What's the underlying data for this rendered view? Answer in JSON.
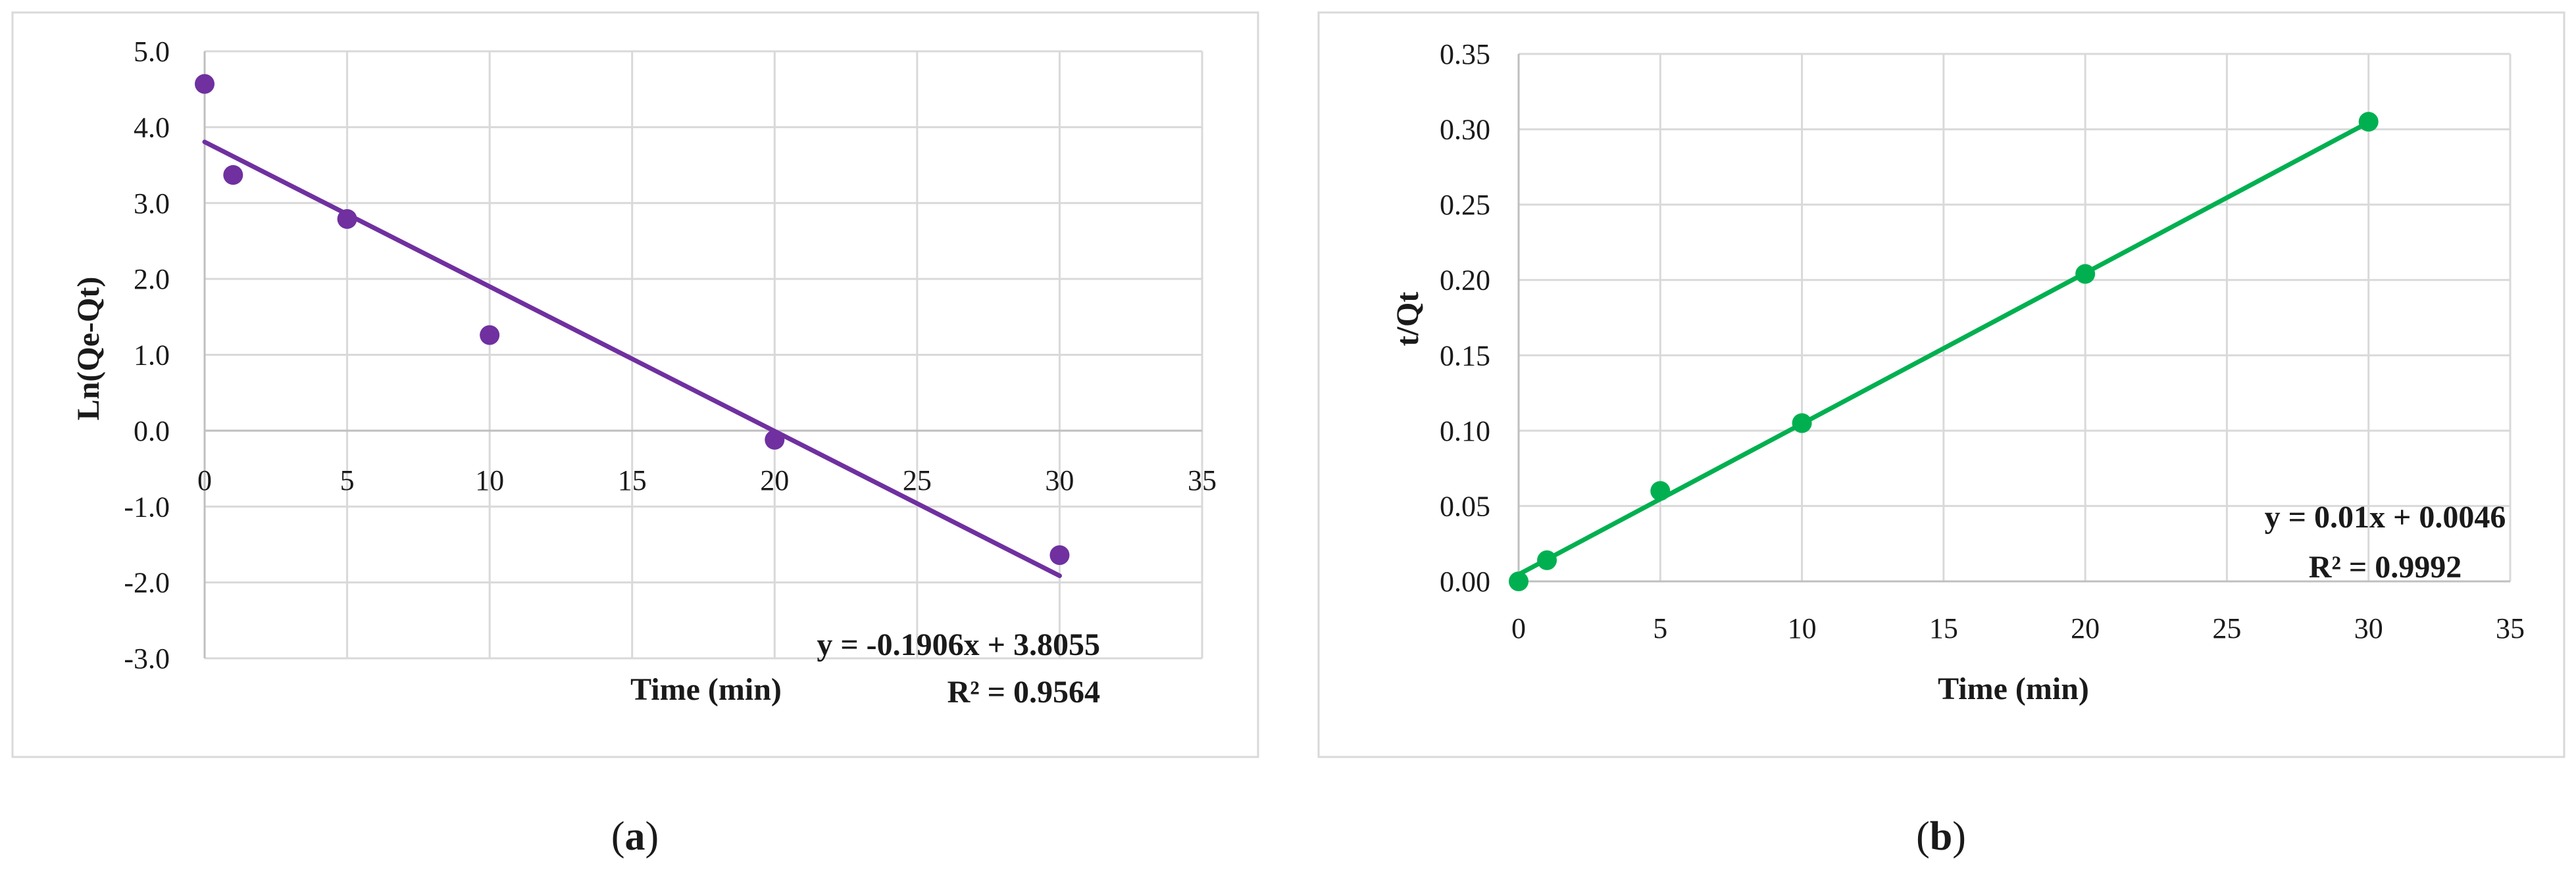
{
  "chart_data": [
    {
      "type": "scatter",
      "panel_label": "a",
      "xlabel": "Time (min)",
      "ylabel": "Ln(Qe-Qt)",
      "xlim": [
        0,
        35
      ],
      "ylim": [
        -3.0,
        5.0
      ],
      "x_ticks": [
        "0",
        "5",
        "10",
        "15",
        "20",
        "25",
        "30",
        "35"
      ],
      "y_ticks": [
        "5.0",
        "4.0",
        "3.0",
        "2.0",
        "1.0",
        "0.0",
        "-1.0",
        "-2.0",
        "-3.0"
      ],
      "grid": true,
      "color": "#7030A0",
      "series": [
        {
          "x": [
            0,
            1,
            5,
            10,
            20,
            30
          ],
          "y": [
            4.57,
            3.37,
            2.79,
            1.26,
            -0.12,
            -1.64
          ]
        }
      ],
      "trendline": {
        "slope": -0.1906,
        "intercept": 3.8055,
        "x_range": [
          0,
          30
        ],
        "equation": "y = -0.1906x + 3.8055",
        "r2": "R² = 0.9564"
      }
    },
    {
      "type": "scatter",
      "panel_label": "b",
      "xlabel": "Time (min)",
      "ylabel": "t/Qt",
      "xlim": [
        0,
        35
      ],
      "ylim": [
        0,
        0.35
      ],
      "x_ticks": [
        "0",
        "5",
        "10",
        "15",
        "20",
        "25",
        "30",
        "35"
      ],
      "y_ticks": [
        "0.35",
        "0.30",
        "0.25",
        "0.20",
        "0.15",
        "0.10",
        "0.05",
        "0.00"
      ],
      "grid": true,
      "color": "#00B050",
      "series": [
        {
          "x": [
            0,
            1,
            5,
            10,
            20,
            30
          ],
          "y": [
            0.0,
            0.014,
            0.06,
            0.105,
            0.204,
            0.305
          ]
        }
      ],
      "trendline": {
        "slope": 0.01,
        "intercept": 0.0046,
        "x_range": [
          0,
          30
        ],
        "equation": "y = 0.01x + 0.0046",
        "r2": "R² = 0.9992"
      }
    }
  ]
}
